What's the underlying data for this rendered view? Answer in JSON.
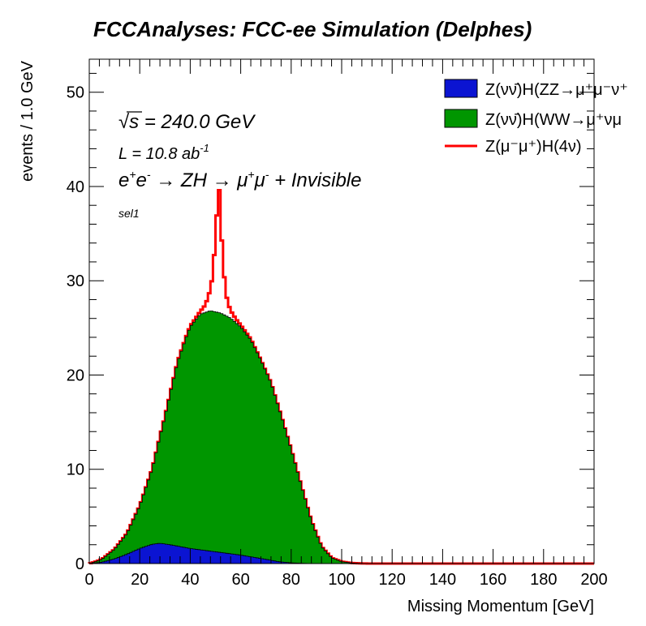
{
  "chart_data": {
    "type": "histogram",
    "title": "FCCAnalyses: FCC-ee Simulation (Delphes)",
    "xlabel": "Missing Momentum [GeV]",
    "ylabel": "events / 1.0 GeV",
    "xlim": [
      0,
      200
    ],
    "ylim": [
      0,
      53.5
    ],
    "bin_width": 1.0,
    "x_ticks": [
      "0",
      "20",
      "40",
      "60",
      "80",
      "100",
      "120",
      "140",
      "160",
      "180",
      "200"
    ],
    "y_ticks": [
      "0",
      "10",
      "20",
      "30",
      "40",
      "50"
    ],
    "legend_position": "top-right",
    "annotations": {
      "sqrt_s_symbol": "√",
      "sqrt_s_var": "s",
      "sqrt_s_value": " = 240.0 GeV",
      "lumi_text": "L = 10.8 ab",
      "lumi_exp": "-1",
      "process_e": "e",
      "process_plus": "+",
      "process_e2": "e",
      "process_minus": "-",
      "process_arrow1": " → ZH  → μ",
      "process_mu_plus": "+",
      "process_mu": "μ",
      "process_mu_minus": "-",
      "process_tail": " + Invisible",
      "selection": "sel1"
    },
    "series": [
      {
        "name": "Z(νν̄)H(ZZ→μ⁺μ⁻ν⁺",
        "style": "stacked-fill",
        "color": "#0b14d2",
        "anchors": [
          [
            0,
            0
          ],
          [
            2,
            0.05
          ],
          [
            5,
            0.15
          ],
          [
            10,
            0.5
          ],
          [
            15,
            1.0
          ],
          [
            20,
            1.6
          ],
          [
            25,
            2.05
          ],
          [
            28,
            2.15
          ],
          [
            32,
            2.0
          ],
          [
            40,
            1.6
          ],
          [
            50,
            1.25
          ],
          [
            60,
            0.9
          ],
          [
            70,
            0.45
          ],
          [
            75,
            0.2
          ],
          [
            80,
            0.08
          ],
          [
            85,
            0.02
          ],
          [
            90,
            0
          ]
        ]
      },
      {
        "name": "Z(νν̄)H(WW→μ⁺νμ",
        "style": "stacked-fill",
        "color": "#009600",
        "anchors": [
          [
            0,
            0
          ],
          [
            2,
            0.1
          ],
          [
            5,
            0.3
          ],
          [
            10,
            1.0
          ],
          [
            15,
            2.2
          ],
          [
            20,
            4.5
          ],
          [
            25,
            8.0
          ],
          [
            30,
            13.5
          ],
          [
            35,
            19.5
          ],
          [
            38,
            22.0
          ],
          [
            40,
            23.5
          ],
          [
            44,
            25.0
          ],
          [
            48,
            25.5
          ],
          [
            52,
            25.4
          ],
          [
            56,
            25.0
          ],
          [
            60,
            24.2
          ],
          [
            64,
            23.0
          ],
          [
            68,
            21.0
          ],
          [
            72,
            18.8
          ],
          [
            76,
            15.5
          ],
          [
            80,
            12.0
          ],
          [
            84,
            8.2
          ],
          [
            88,
            4.5
          ],
          [
            92,
            1.8
          ],
          [
            96,
            0.6
          ],
          [
            100,
            0.2
          ],
          [
            104,
            0.06
          ],
          [
            108,
            0.01
          ],
          [
            112,
            0
          ]
        ]
      },
      {
        "name": "Z(μ⁻μ⁺)H(4ν)",
        "style": "line",
        "color": "#ff0000",
        "anchors": [
          [
            0,
            0
          ],
          [
            30,
            0.02
          ],
          [
            40,
            0.1
          ],
          [
            44,
            0.3
          ],
          [
            46,
            0.8
          ],
          [
            47,
            1.5
          ],
          [
            48,
            2.3
          ],
          [
            49,
            4.0
          ],
          [
            50,
            8.0
          ],
          [
            51,
            12.5
          ],
          [
            51.5,
            13.0
          ],
          [
            52,
            10.0
          ],
          [
            53,
            5.5
          ],
          [
            54,
            2.5
          ],
          [
            55,
            1.4
          ],
          [
            56,
            0.8
          ],
          [
            58,
            0.4
          ],
          [
            60,
            0.2
          ],
          [
            65,
            0.05
          ],
          [
            70,
            0
          ]
        ]
      }
    ]
  }
}
